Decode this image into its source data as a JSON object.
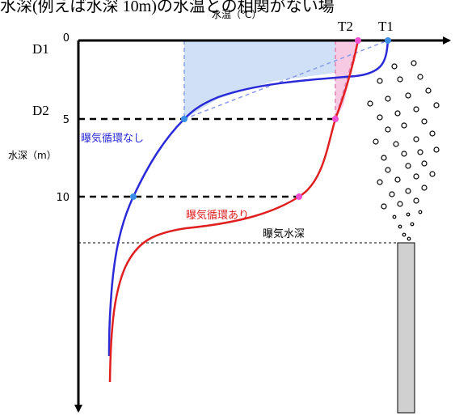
{
  "header": {
    "title": "水深(例えば水深 10m)の水温との相関がない場"
  },
  "axes": {
    "x_label": "水温（℃）",
    "y_label": "水深（m）",
    "ticks": [
      "0",
      "5",
      "10"
    ]
  },
  "markers": {
    "t2": "T2",
    "t1": "T1",
    "d1": "D1",
    "d2": "D2"
  },
  "curves": {
    "no_circulation": "曝気循環なし",
    "with_circulation": "曝気循環あり"
  },
  "aeration_depth": "曝気水深"
}
